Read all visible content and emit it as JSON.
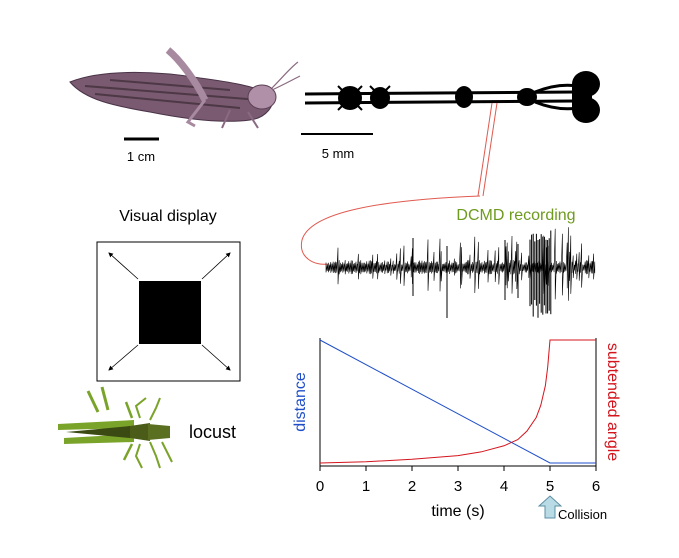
{
  "labels": {
    "scale_locust": "1 cm",
    "scale_nerve": "5 mm",
    "visual_display": "Visual display",
    "dcmd_recording": "DCMD recording",
    "locust": "locust",
    "distance": "distance",
    "subtended_angle": "subtended angle",
    "time_axis": "time (s)",
    "collision": "Collision"
  },
  "colors": {
    "distance": "#1f4fc8",
    "angle": "#d4141c",
    "dcmd": "#6e9a1e",
    "locust_body": "#7aa32a",
    "nerve_link": "#e05a50"
  },
  "chart_data": {
    "type": "line",
    "x_ticks": [
      0,
      1,
      2,
      3,
      4,
      5,
      6
    ],
    "xlim": [
      0,
      6
    ],
    "xlabel": "time (s)",
    "collision_time": 5,
    "series": [
      {
        "name": "distance",
        "axis": "left",
        "x": [
          0,
          5,
          6
        ],
        "y": [
          1,
          0,
          0
        ]
      },
      {
        "name": "subtended angle",
        "axis": "right",
        "x": [
          0,
          1,
          2,
          3,
          3.5,
          4,
          4.3,
          4.5,
          4.7,
          4.8,
          4.9,
          4.95,
          5,
          6
        ],
        "y": [
          0,
          0.01,
          0.03,
          0.06,
          0.09,
          0.14,
          0.19,
          0.26,
          0.37,
          0.47,
          0.63,
          0.78,
          1,
          1
        ]
      }
    ]
  }
}
